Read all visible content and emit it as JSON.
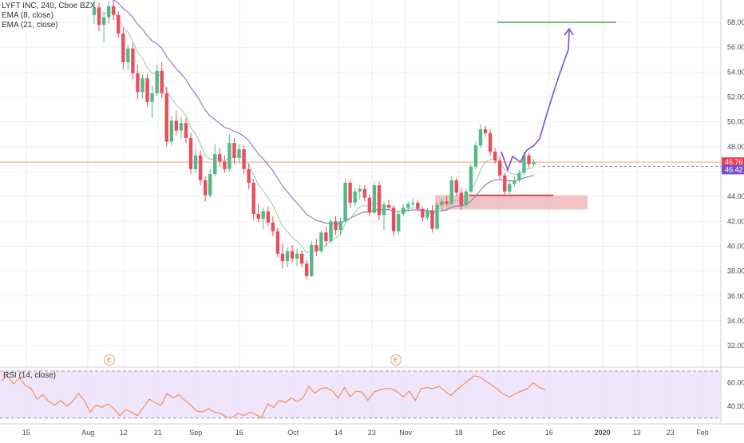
{
  "legend": {
    "symbol": "LYFT INC, 240, Cboe BZX",
    "ema_fast": "EMA (8, close)",
    "ema_slow": "EMA (21, close)",
    "rsi": "RSI (14, close)"
  },
  "colors": {
    "up": "#53b987",
    "down": "#eb4d5c",
    "ema_fast": "#9ec9a0",
    "ema_slow": "#8a6fd0",
    "rsi_line": "#f57f3a",
    "rsi_band": "#e8dcfb",
    "target_line": "#5a9a5a",
    "arrow": "#7b4fc9",
    "support_zone": "#e9a3a6",
    "support_line": "#c62828",
    "last_price_line": "#f3a27a",
    "last_price_badge": "#e8404e",
    "ema_price_badge": "#7b4fc9"
  },
  "chart_data": [
    {
      "type": "candlestick",
      "title": "LYFT INC, 240, Cboe BZX",
      "ylim": [
        30.4,
        59.8
      ],
      "y_ticks": [
        "58.00",
        "56.00",
        "54.00",
        "52.00",
        "50.00",
        "48.00",
        "46.00",
        "44.00",
        "42.00",
        "40.00",
        "38.00",
        "36.00",
        "34.00",
        "32.00"
      ],
      "x_ticks": [
        "15",
        "Aug",
        "12",
        "21",
        "Sep",
        "16",
        "Oct",
        "14",
        "23",
        "Nov",
        "18",
        "Dec",
        "16",
        "2020",
        "13",
        "23",
        "Feb"
      ],
      "price_labels": {
        "last": "46.76",
        "ema": "46.42"
      },
      "earnings_markers": [
        "E",
        "E"
      ],
      "points": [
        {
          "o": 58.6,
          "h": 59.8,
          "l": 57.9,
          "c": 59.2
        },
        {
          "o": 59.2,
          "h": 59.6,
          "l": 57.3,
          "c": 57.8
        },
        {
          "o": 57.8,
          "h": 58.9,
          "l": 56.4,
          "c": 58.4
        },
        {
          "o": 58.4,
          "h": 59.7,
          "l": 57.9,
          "c": 59.3
        },
        {
          "o": 59.3,
          "h": 59.8,
          "l": 58.2,
          "c": 58.6
        },
        {
          "o": 58.6,
          "h": 58.9,
          "l": 56.8,
          "c": 57.1
        },
        {
          "o": 57.1,
          "h": 57.6,
          "l": 54.2,
          "c": 54.8
        },
        {
          "o": 54.8,
          "h": 56.2,
          "l": 54.1,
          "c": 55.9
        },
        {
          "o": 55.9,
          "h": 56.3,
          "l": 53.4,
          "c": 53.9
        },
        {
          "o": 53.9,
          "h": 54.6,
          "l": 51.8,
          "c": 52.4
        },
        {
          "o": 52.4,
          "h": 53.8,
          "l": 51.9,
          "c": 53.5
        },
        {
          "o": 53.5,
          "h": 53.9,
          "l": 51.2,
          "c": 51.6
        },
        {
          "o": 51.6,
          "h": 52.9,
          "l": 50.3,
          "c": 52.3
        },
        {
          "o": 52.3,
          "h": 54.6,
          "l": 52.1,
          "c": 54.1
        },
        {
          "o": 54.1,
          "h": 54.8,
          "l": 51.9,
          "c": 52.3
        },
        {
          "o": 52.3,
          "h": 52.8,
          "l": 48.0,
          "c": 48.4
        },
        {
          "o": 48.4,
          "h": 50.5,
          "l": 48.1,
          "c": 50.1
        },
        {
          "o": 50.1,
          "h": 50.9,
          "l": 48.9,
          "c": 49.3
        },
        {
          "o": 49.3,
          "h": 50.4,
          "l": 48.6,
          "c": 49.9
        },
        {
          "o": 49.9,
          "h": 50.3,
          "l": 48.3,
          "c": 48.7
        },
        {
          "o": 48.7,
          "h": 49.1,
          "l": 45.8,
          "c": 46.2
        },
        {
          "o": 46.2,
          "h": 47.8,
          "l": 45.9,
          "c": 47.3
        },
        {
          "o": 47.3,
          "h": 47.7,
          "l": 44.9,
          "c": 45.3
        },
        {
          "o": 45.3,
          "h": 45.6,
          "l": 43.6,
          "c": 44.1
        },
        {
          "o": 44.1,
          "h": 46.2,
          "l": 43.9,
          "c": 45.8
        },
        {
          "o": 45.8,
          "h": 48.2,
          "l": 45.6,
          "c": 47.4
        },
        {
          "o": 47.4,
          "h": 47.9,
          "l": 46.4,
          "c": 46.8
        },
        {
          "o": 46.8,
          "h": 47.3,
          "l": 45.9,
          "c": 46.2
        },
        {
          "o": 46.2,
          "h": 49.0,
          "l": 46.0,
          "c": 48.3
        },
        {
          "o": 48.3,
          "h": 48.7,
          "l": 46.6,
          "c": 47.1
        },
        {
          "o": 47.1,
          "h": 48.2,
          "l": 46.7,
          "c": 47.8
        },
        {
          "o": 47.8,
          "h": 48.1,
          "l": 45.8,
          "c": 46.2
        },
        {
          "o": 46.2,
          "h": 46.6,
          "l": 44.6,
          "c": 45.1
        },
        {
          "o": 45.1,
          "h": 45.4,
          "l": 42.1,
          "c": 42.6
        },
        {
          "o": 42.6,
          "h": 43.4,
          "l": 41.9,
          "c": 42.2
        },
        {
          "o": 42.2,
          "h": 43.1,
          "l": 41.4,
          "c": 42.8
        },
        {
          "o": 42.8,
          "h": 43.2,
          "l": 41.6,
          "c": 41.9
        },
        {
          "o": 41.9,
          "h": 42.4,
          "l": 40.8,
          "c": 41.2
        },
        {
          "o": 41.2,
          "h": 41.5,
          "l": 39.1,
          "c": 39.4
        },
        {
          "o": 39.4,
          "h": 40.2,
          "l": 38.2,
          "c": 38.8
        },
        {
          "o": 38.8,
          "h": 39.9,
          "l": 38.3,
          "c": 39.6
        },
        {
          "o": 39.6,
          "h": 40.1,
          "l": 38.7,
          "c": 39.0
        },
        {
          "o": 39.0,
          "h": 39.8,
          "l": 38.4,
          "c": 39.4
        },
        {
          "o": 39.4,
          "h": 39.7,
          "l": 38.3,
          "c": 38.6
        },
        {
          "o": 38.6,
          "h": 38.9,
          "l": 37.3,
          "c": 37.6
        },
        {
          "o": 37.6,
          "h": 40.4,
          "l": 37.5,
          "c": 40.1
        },
        {
          "o": 40.1,
          "h": 40.6,
          "l": 39.2,
          "c": 39.6
        },
        {
          "o": 39.6,
          "h": 41.3,
          "l": 39.4,
          "c": 41.1
        },
        {
          "o": 41.1,
          "h": 41.6,
          "l": 40.0,
          "c": 40.4
        },
        {
          "o": 40.4,
          "h": 42.2,
          "l": 40.3,
          "c": 42.0
        },
        {
          "o": 42.0,
          "h": 42.4,
          "l": 40.9,
          "c": 41.3
        },
        {
          "o": 41.3,
          "h": 42.3,
          "l": 40.9,
          "c": 42.0
        },
        {
          "o": 42.0,
          "h": 45.4,
          "l": 41.9,
          "c": 45.1
        },
        {
          "o": 45.1,
          "h": 45.3,
          "l": 43.1,
          "c": 43.5
        },
        {
          "o": 43.5,
          "h": 44.7,
          "l": 43.2,
          "c": 44.4
        },
        {
          "o": 44.4,
          "h": 44.9,
          "l": 43.8,
          "c": 44.6
        },
        {
          "o": 44.6,
          "h": 44.9,
          "l": 43.6,
          "c": 43.9
        },
        {
          "o": 43.9,
          "h": 44.2,
          "l": 42.4,
          "c": 42.7
        },
        {
          "o": 42.7,
          "h": 45.1,
          "l": 42.6,
          "c": 44.9
        },
        {
          "o": 44.9,
          "h": 45.2,
          "l": 42.1,
          "c": 42.5
        },
        {
          "o": 42.5,
          "h": 43.6,
          "l": 41.3,
          "c": 43.3
        },
        {
          "o": 43.3,
          "h": 43.7,
          "l": 42.9,
          "c": 43.1
        },
        {
          "o": 43.1,
          "h": 43.3,
          "l": 40.8,
          "c": 41.2
        },
        {
          "o": 41.2,
          "h": 42.9,
          "l": 40.9,
          "c": 42.6
        },
        {
          "o": 42.6,
          "h": 43.4,
          "l": 42.4,
          "c": 43.1
        },
        {
          "o": 43.1,
          "h": 43.6,
          "l": 42.9,
          "c": 43.4
        },
        {
          "o": 43.4,
          "h": 43.8,
          "l": 43.2,
          "c": 43.5
        },
        {
          "o": 43.5,
          "h": 43.7,
          "l": 42.8,
          "c": 43.0
        },
        {
          "o": 43.0,
          "h": 43.2,
          "l": 42.0,
          "c": 42.3
        },
        {
          "o": 42.3,
          "h": 43.1,
          "l": 42.1,
          "c": 42.9
        },
        {
          "o": 42.9,
          "h": 43.3,
          "l": 41.1,
          "c": 41.4
        },
        {
          "o": 41.4,
          "h": 43.5,
          "l": 41.3,
          "c": 43.3
        },
        {
          "o": 43.3,
          "h": 43.8,
          "l": 42.9,
          "c": 43.6
        },
        {
          "o": 43.6,
          "h": 44.1,
          "l": 43.2,
          "c": 43.4
        },
        {
          "o": 43.4,
          "h": 45.6,
          "l": 43.3,
          "c": 45.3
        },
        {
          "o": 45.3,
          "h": 45.5,
          "l": 44.0,
          "c": 44.3
        },
        {
          "o": 44.3,
          "h": 44.7,
          "l": 42.9,
          "c": 43.3
        },
        {
          "o": 43.3,
          "h": 44.6,
          "l": 43.1,
          "c": 44.4
        },
        {
          "o": 44.4,
          "h": 46.6,
          "l": 44.3,
          "c": 46.4
        },
        {
          "o": 46.4,
          "h": 48.4,
          "l": 46.2,
          "c": 48.1
        },
        {
          "o": 48.1,
          "h": 49.8,
          "l": 47.9,
          "c": 49.4
        },
        {
          "o": 49.4,
          "h": 49.7,
          "l": 48.8,
          "c": 49.1
        },
        {
          "o": 49.1,
          "h": 49.4,
          "l": 47.3,
          "c": 47.6
        },
        {
          "o": 47.6,
          "h": 47.9,
          "l": 46.6,
          "c": 46.9
        },
        {
          "o": 46.9,
          "h": 47.2,
          "l": 45.4,
          "c": 45.7
        },
        {
          "o": 45.7,
          "h": 45.9,
          "l": 44.1,
          "c": 44.4
        },
        {
          "o": 44.4,
          "h": 45.2,
          "l": 44.2,
          "c": 45.0
        },
        {
          "o": 45.0,
          "h": 45.6,
          "l": 44.8,
          "c": 45.3
        },
        {
          "o": 45.3,
          "h": 46.1,
          "l": 45.1,
          "c": 45.9
        },
        {
          "o": 45.9,
          "h": 47.6,
          "l": 45.7,
          "c": 47.3
        },
        {
          "o": 47.3,
          "h": 47.5,
          "l": 46.3,
          "c": 46.6
        },
        {
          "o": 46.6,
          "h": 47.0,
          "l": 46.4,
          "c": 46.76
        }
      ]
    },
    {
      "type": "line",
      "title": "RSI (14, close)",
      "ylim": [
        27,
        72
      ],
      "y_ticks": [
        "60.00",
        "40.00"
      ],
      "bands": [
        30,
        70
      ],
      "values": [
        62,
        66,
        59,
        64,
        58,
        55,
        46,
        50,
        44,
        41,
        45,
        40,
        44,
        51,
        45,
        35,
        41,
        39,
        42,
        38,
        32,
        37,
        35,
        32,
        39,
        46,
        43,
        41,
        51,
        47,
        50,
        45,
        41,
        36,
        35,
        38,
        35,
        34,
        31,
        30,
        34,
        32,
        35,
        33,
        30,
        42,
        39,
        45,
        43,
        47,
        44,
        47,
        57,
        51,
        55,
        56,
        53,
        47,
        56,
        48,
        53,
        52,
        45,
        52,
        54,
        55,
        55,
        52,
        48,
        53,
        45,
        55,
        56,
        55,
        57,
        53,
        49,
        54,
        58,
        62,
        66,
        65,
        61,
        58,
        54,
        50,
        48,
        51,
        53,
        55,
        60,
        56,
        54
      ]
    }
  ]
}
